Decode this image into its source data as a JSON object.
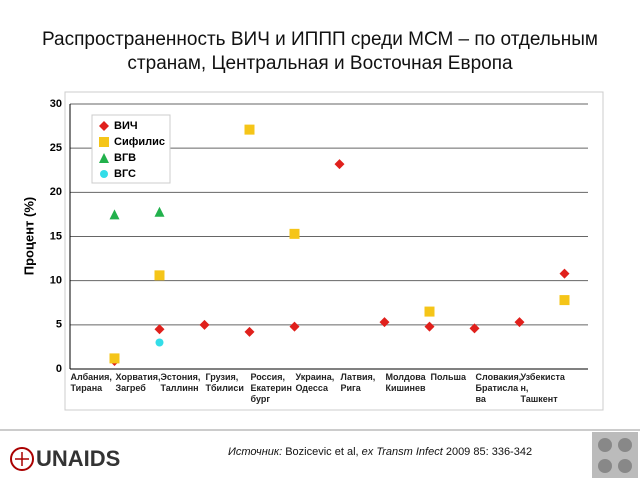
{
  "chart_data": {
    "type": "scatter",
    "title": "Распространенность ВИЧ и ИППП среди МСМ – по отдельным странам, Центральная и Восточная Европа",
    "y_label": "Процент (%)",
    "categories": [
      "Албания, Тирана",
      "Хорватия, Загреб",
      "Эстония, Таллинн",
      "Грузия, Тбилиси",
      "Россия, Екатеринбург",
      "Украина, Одесса",
      "Латвия, Рига",
      "Молдова Кишинев",
      "Польша",
      "Словакия, Братислава",
      "Узбекистан, Ташкент"
    ],
    "series": [
      {
        "name": "ВИЧ",
        "color": "#e0201c",
        "marker": "diamond",
        "values": [
          0.9,
          4.5,
          5.0,
          4.2,
          4.8,
          23.2,
          5.3,
          4.8,
          4.6,
          5.3,
          10.8
        ]
      },
      {
        "name": "Сифилис",
        "color": "#f5c518",
        "marker": "square",
        "values": [
          1.2,
          10.6,
          null,
          27.1,
          15.3,
          null,
          null,
          6.5,
          null,
          null,
          7.8
        ]
      },
      {
        "name": "ВГВ",
        "color": "#22b14c",
        "marker": "triangle",
        "values": [
          17.5,
          17.8,
          null,
          null,
          null,
          null,
          null,
          null,
          null,
          null,
          null
        ]
      },
      {
        "name": "ВГС",
        "color": "#33dde8",
        "marker": "circle",
        "values": [
          null,
          3.0,
          null,
          null,
          null,
          null,
          null,
          null,
          null,
          null,
          null
        ]
      }
    ],
    "ylim": [
      0,
      30
    ],
    "yticks": [
      0,
      5,
      10,
      15,
      20,
      25,
      30
    ],
    "grid": true,
    "legend": "top-left"
  },
  "source": {
    "lead": "Источник:",
    "authors": "Bozicevic et al,",
    "journal": "ex Transm Infect",
    "ref": "2009 85: 336-342"
  },
  "logo": "UNAIDS"
}
